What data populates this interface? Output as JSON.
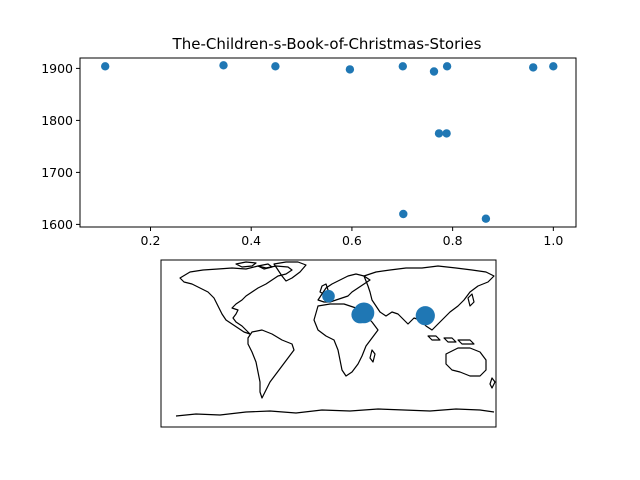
{
  "chart_data": [
    {
      "type": "scatter",
      "title": "The-Children-s-Book-of-Christmas-Stories",
      "xlabel": "",
      "ylabel": "",
      "xlim": [
        0.06,
        1.045
      ],
      "ylim": [
        1595,
        1920
      ],
      "xticks": [
        0.2,
        0.4,
        0.6,
        0.8,
        1.0
      ],
      "xtick_labels": [
        "0.2",
        "0.4",
        "0.6",
        "0.8",
        "1.0"
      ],
      "yticks": [
        1600,
        1700,
        1800,
        1900
      ],
      "ytick_labels": [
        "1600",
        "1700",
        "1800",
        "1900"
      ],
      "grid": false,
      "color": "#1f77b4",
      "points": [
        {
          "x": 0.11,
          "y": 1904
        },
        {
          "x": 0.345,
          "y": 1906
        },
        {
          "x": 0.448,
          "y": 1904
        },
        {
          "x": 0.596,
          "y": 1898
        },
        {
          "x": 0.701,
          "y": 1904
        },
        {
          "x": 0.702,
          "y": 1620
        },
        {
          "x": 0.763,
          "y": 1894
        },
        {
          "x": 0.773,
          "y": 1775
        },
        {
          "x": 0.788,
          "y": 1775
        },
        {
          "x": 0.789,
          "y": 1904
        },
        {
          "x": 0.866,
          "y": 1611
        },
        {
          "x": 0.96,
          "y": 1902
        },
        {
          "x": 1.0,
          "y": 1904
        }
      ]
    },
    {
      "type": "map-scatter",
      "title": "",
      "projection": "equirectangular",
      "lon_range": [
        -180,
        180
      ],
      "lat_range": [
        -90,
        90
      ],
      "color": "#1f77b4",
      "points": [
        {
          "lon": 0,
          "lat": 51,
          "size": 1
        },
        {
          "lon": 34,
          "lat": 31,
          "size": 3
        },
        {
          "lon": 38,
          "lat": 33,
          "size": 5
        },
        {
          "lon": 104,
          "lat": 30,
          "size": 4
        }
      ]
    }
  ]
}
